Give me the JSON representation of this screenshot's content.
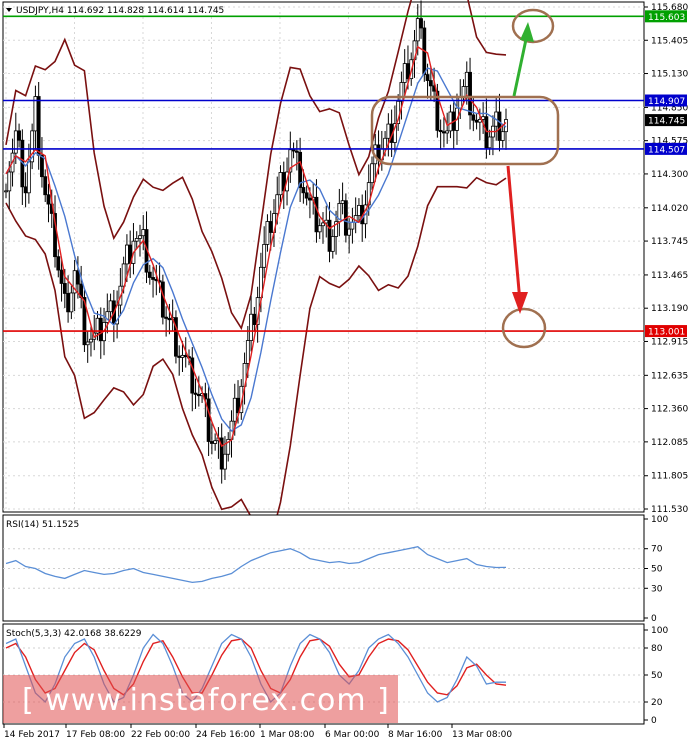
{
  "chart_data": {
    "type": "candlestick",
    "main": {
      "header": "USDJPY,H4  114.692 114.828 114.614 114.745",
      "symbol": "USDJPY,H4",
      "ohlc": {
        "open": 114.692,
        "high": 114.828,
        "low": 114.614,
        "close": 114.745
      },
      "ylim": [
        111.53,
        115.68
      ],
      "y_ticks": [
        111.53,
        111.805,
        112.085,
        112.36,
        112.635,
        112.915,
        113.19,
        113.465,
        113.745,
        114.02,
        114.3,
        114.575,
        114.85,
        115.13,
        115.405,
        115.68
      ],
      "levels": [
        {
          "value": 115.603,
          "label": "115.603",
          "color": "#00a000"
        },
        {
          "value": 114.907,
          "label": "114.907",
          "color": "#0000cc"
        },
        {
          "value": 114.745,
          "label": "114.745",
          "color": "#000000"
        },
        {
          "value": 114.507,
          "label": "114.507",
          "color": "#0000cc"
        },
        {
          "value": 113.001,
          "label": "113.001",
          "color": "#e00000"
        }
      ],
      "close_path": [
        114.3,
        114.6,
        114.2,
        114.8,
        114.1,
        113.7,
        113.2,
        113.5,
        113.0,
        112.9,
        113.1,
        113.2,
        113.5,
        113.8,
        113.7,
        113.4,
        113.2,
        113.0,
        112.8,
        112.6,
        112.4,
        112.1,
        112.0,
        112.2,
        112.6,
        113.0,
        113.5,
        113.9,
        114.2,
        114.5,
        114.3,
        114.0,
        113.9,
        113.8,
        114.0,
        113.9,
        113.9,
        114.2,
        114.5,
        114.6,
        114.9,
        115.2,
        115.5,
        115.1,
        114.8,
        114.6,
        114.9,
        115.0,
        114.7,
        114.6,
        114.7,
        114.75
      ]
    },
    "rsi": {
      "label": "RSI(14) 51.1525",
      "ylim": [
        0,
        100
      ],
      "y_ticks": [
        100,
        70,
        50,
        30,
        0
      ],
      "values": [
        55,
        58,
        52,
        50,
        45,
        42,
        40,
        44,
        48,
        46,
        44,
        45,
        48,
        50,
        46,
        44,
        42,
        40,
        38,
        36,
        37,
        40,
        42,
        45,
        52,
        58,
        62,
        66,
        68,
        70,
        66,
        60,
        58,
        56,
        57,
        55,
        56,
        60,
        64,
        66,
        68,
        70,
        72,
        64,
        60,
        56,
        58,
        60,
        54,
        52,
        51,
        51.15
      ]
    },
    "stoch": {
      "label": "Stoch(5,3,3) 42.0168 38.6229",
      "ylim": [
        0,
        100
      ],
      "y_ticks": [
        100,
        80,
        50,
        20,
        0
      ],
      "main_values": [
        85,
        90,
        60,
        30,
        20,
        40,
        70,
        85,
        90,
        70,
        40,
        20,
        25,
        50,
        80,
        95,
        85,
        60,
        30,
        20,
        35,
        60,
        85,
        95,
        90,
        70,
        40,
        20,
        30,
        60,
        85,
        95,
        90,
        75,
        50,
        40,
        55,
        80,
        90,
        95,
        85,
        70,
        50,
        30,
        20,
        25,
        45,
        70,
        60,
        40,
        42,
        42.02
      ],
      "signal_values": [
        80,
        85,
        70,
        45,
        30,
        35,
        55,
        75,
        85,
        78,
        55,
        35,
        28,
        40,
        65,
        85,
        88,
        70,
        48,
        30,
        30,
        50,
        72,
        88,
        90,
        80,
        55,
        35,
        30,
        45,
        70,
        88,
        90,
        82,
        62,
        48,
        50,
        70,
        85,
        90,
        88,
        78,
        60,
        42,
        30,
        28,
        38,
        58,
        62,
        50,
        40,
        38.62
      ]
    },
    "x_labels": [
      "14 Feb 2017",
      "17 Feb 08:00",
      "22 Feb 00:00",
      "24 Feb 16:00",
      "1 Mar 08:00",
      "6 Mar 00:00",
      "8 Mar 16:00",
      "13 Mar 08:00"
    ],
    "watermark": "[ www.instaforex.com ]"
  }
}
